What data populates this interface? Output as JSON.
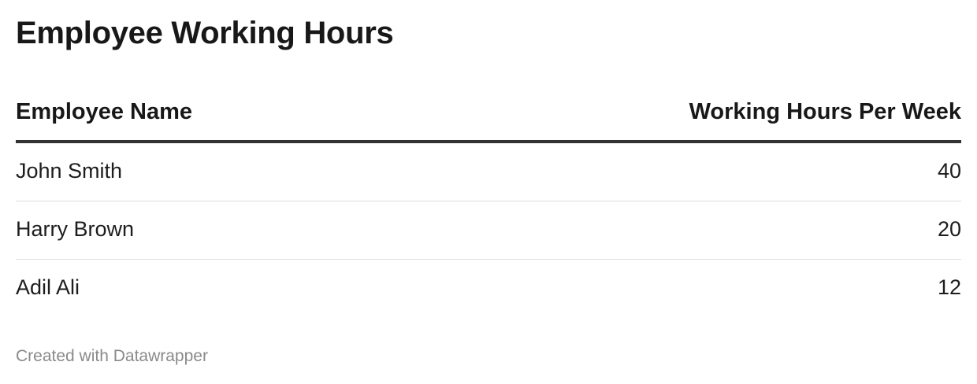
{
  "chart_data": {
    "type": "table",
    "title": "Employee Working Hours",
    "columns": [
      "Employee Name",
      "Working Hours Per Week"
    ],
    "rows": [
      {
        "name": "John Smith",
        "hours": 40
      },
      {
        "name": "Harry Brown",
        "hours": 20
      },
      {
        "name": "Adil Ali",
        "hours": 12
      }
    ]
  },
  "footer": {
    "credit": "Created with Datawrapper"
  },
  "colors": {
    "header_rule": "#333333",
    "row_divider": "#dddddd",
    "footer_text": "#8a8a8a"
  }
}
